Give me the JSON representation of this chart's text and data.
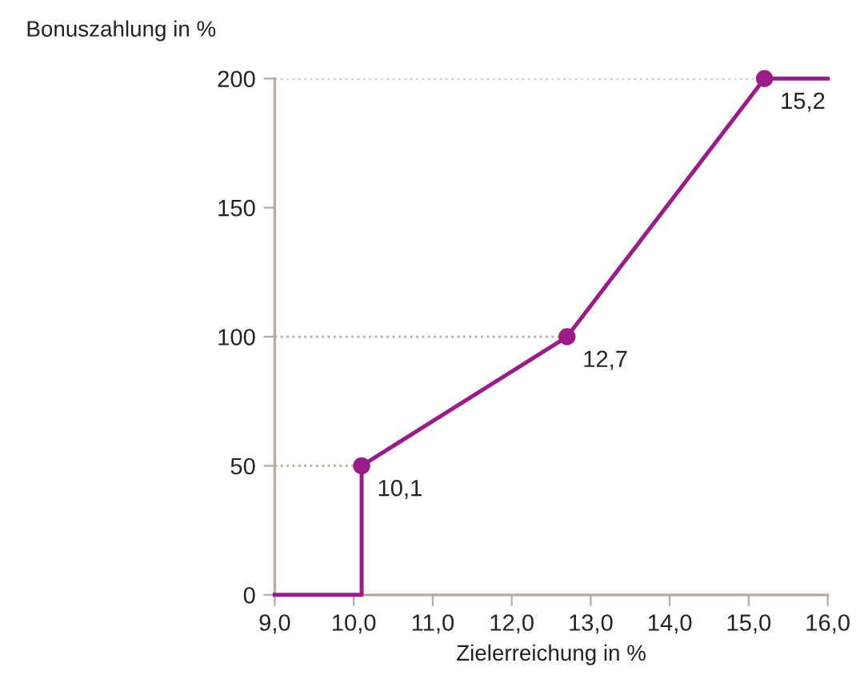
{
  "chart_data": {
    "type": "line",
    "xlabel": "Zielerreichung in %",
    "ylabel": "Bonuszahlung in %",
    "xlim": [
      9,
      16
    ],
    "ylim": [
      0,
      200
    ],
    "xticks": [
      {
        "value": 9,
        "label": "9,0"
      },
      {
        "value": 10,
        "label": "10,0"
      },
      {
        "value": 11,
        "label": "11,0"
      },
      {
        "value": 12,
        "label": "12,0"
      },
      {
        "value": 13,
        "label": "13,0"
      },
      {
        "value": 14,
        "label": "14,0"
      },
      {
        "value": 15,
        "label": "15,0"
      },
      {
        "value": 16,
        "label": "16,0"
      }
    ],
    "yticks": [
      0,
      50,
      100,
      150,
      200
    ],
    "series": [
      {
        "color": "#9b1b8a",
        "marker": "none",
        "x": [
          9,
          10.1,
          10.1,
          12.7,
          15.2,
          16
        ],
        "values": [
          0,
          0,
          50,
          100,
          200,
          200
        ]
      },
      {
        "type": "scatter",
        "color": "#9b1b8a",
        "marker": "circle",
        "x": [
          10.1,
          12.7,
          15.2
        ],
        "values": [
          50,
          100,
          200
        ]
      }
    ],
    "annotations": [
      {
        "text": "10,1",
        "x": 10.1,
        "y": 50
      },
      {
        "text": "12,7",
        "x": 12.7,
        "y": 100
      },
      {
        "text": "15,2",
        "x": 15.2,
        "y": 200
      }
    ],
    "ref_lines": [
      {
        "axis": "y",
        "value": 50,
        "color": "#b5ab9f",
        "line_style": "dotted"
      },
      {
        "axis": "y",
        "value": 100,
        "color": "#b5ab9f",
        "line_style": "dotted"
      },
      {
        "axis": "y",
        "value": 200,
        "color": "#b5ab9f",
        "line_style": "dotted"
      }
    ],
    "grid": false,
    "legend": false
  }
}
